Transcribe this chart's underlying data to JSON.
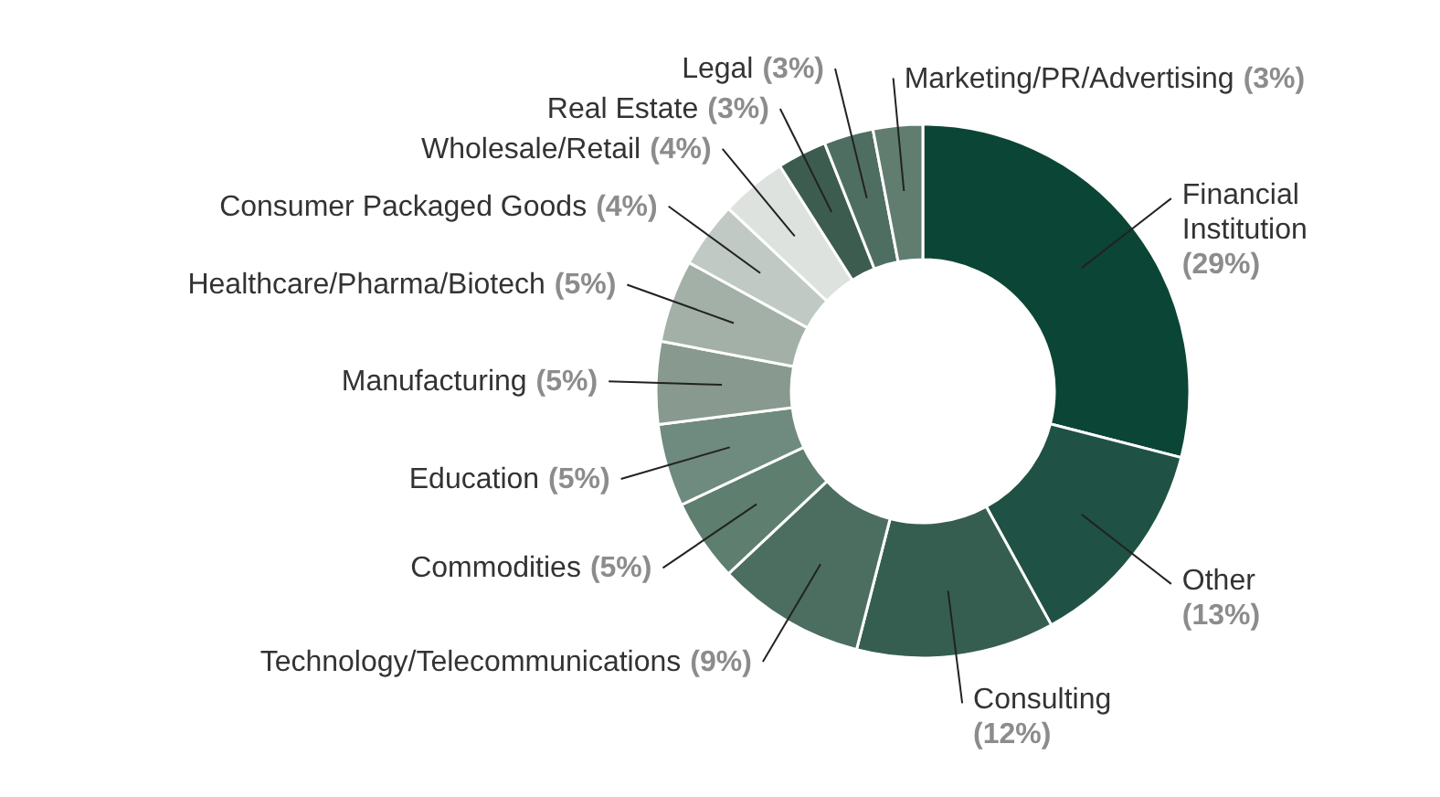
{
  "chart_data": {
    "type": "donut",
    "categories": [
      "Financial Institution",
      "Other",
      "Consulting",
      "Technology/Telecommunications",
      "Commodities",
      "Education",
      "Manufacturing",
      "Healthcare/Pharma/Biotech",
      "Consumer Packaged Goods",
      "Wholesale/Retail",
      "Real Estate",
      "Legal",
      "Marketing/PR/Advertising"
    ],
    "values": [
      29,
      13,
      12,
      9,
      5,
      5,
      5,
      5,
      4,
      4,
      3,
      3,
      3
    ],
    "colors": [
      "#0b4535",
      "#1f5244",
      "#355e50",
      "#4b6e60",
      "#5e7e70",
      "#6f8a7e",
      "#88998f",
      "#a3b0a8",
      "#c0c9c3",
      "#dde2df",
      "#3d5c50",
      "#4f6e62",
      "#607d70"
    ],
    "value_labels": [
      "(29%)",
      "(13%)",
      "(12%)",
      "(9%)",
      "(5%)",
      "(5%)",
      "(5%)",
      "(5%)",
      "(4%)",
      "(4%)",
      "(3%)",
      "(3%)",
      "(3%)"
    ]
  }
}
